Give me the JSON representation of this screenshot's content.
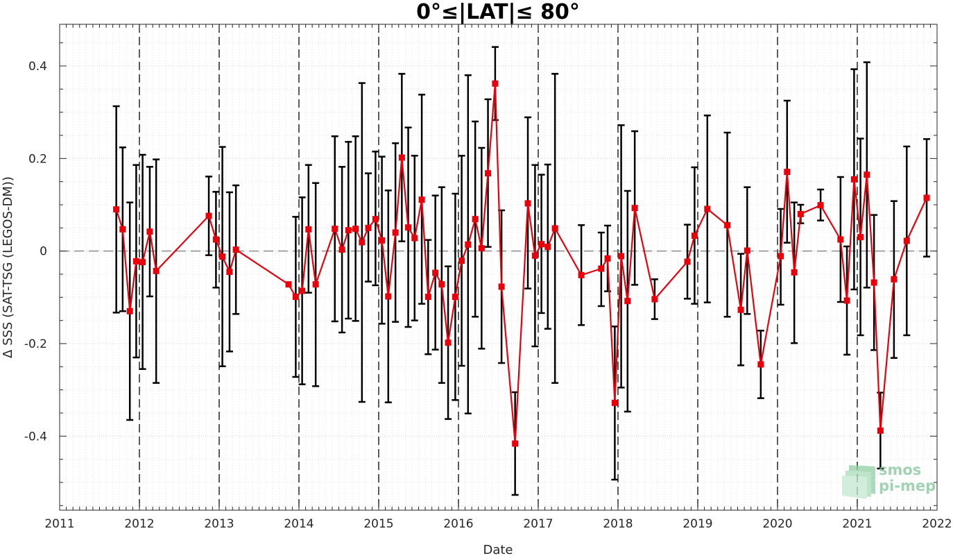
{
  "chart_data": {
    "type": "line",
    "title": "0°≤|LAT|≤ 80°",
    "xlabel": "Date",
    "ylabel": "Δ SSS (SAT-TSG (LEGOS-DM))",
    "xlim": [
      2011,
      2022
    ],
    "ylim": [
      -0.56,
      0.49
    ],
    "x_ticks": [
      "2011",
      "2012",
      "2013",
      "2014",
      "2015",
      "2016",
      "2017",
      "2018",
      "2019",
      "2020",
      "2021",
      "2022"
    ],
    "y_ticks": [
      "-0.4",
      "-0.2",
      "0",
      "0.2",
      "0.4"
    ],
    "y_tick_values": [
      -0.4,
      -0.2,
      0,
      0.2,
      0.4
    ],
    "grid": true,
    "reference_line": 0,
    "year_separators": [
      2012,
      2013,
      2014,
      2015,
      2016,
      2017,
      2018,
      2019,
      2020,
      2021
    ],
    "series": [
      {
        "color": "#e8000b",
        "marker": "square",
        "errorbar_color": "#000000",
        "points": [
          {
            "x": 2011.71,
            "y": 0.09,
            "lo": -0.133,
            "hi": 0.313
          },
          {
            "x": 2011.79,
            "y": 0.047,
            "lo": -0.13,
            "hi": 0.224
          },
          {
            "x": 2011.88,
            "y": -0.13,
            "lo": -0.365,
            "hi": 0.105
          },
          {
            "x": 2011.96,
            "y": -0.022,
            "lo": -0.23,
            "hi": 0.186
          },
          {
            "x": 2012.04,
            "y": -0.024,
            "lo": -0.255,
            "hi": 0.208
          },
          {
            "x": 2012.13,
            "y": 0.042,
            "lo": -0.098,
            "hi": 0.182
          },
          {
            "x": 2012.21,
            "y": -0.043,
            "lo": -0.285,
            "hi": 0.198
          },
          {
            "x": 2012.87,
            "y": 0.076,
            "lo": -0.009,
            "hi": 0.161
          },
          {
            "x": 2012.96,
            "y": 0.025,
            "lo": -0.079,
            "hi": 0.128
          },
          {
            "x": 2013.04,
            "y": -0.012,
            "lo": -0.249,
            "hi": 0.225
          },
          {
            "x": 2013.13,
            "y": -0.045,
            "lo": -0.217,
            "hi": 0.127
          },
          {
            "x": 2013.21,
            "y": 0.003,
            "lo": -0.136,
            "hi": 0.142
          },
          {
            "x": 2013.87,
            "y": -0.072,
            "lo": -0.072,
            "hi": -0.072
          },
          {
            "x": 2013.96,
            "y": -0.099,
            "lo": -0.272,
            "hi": 0.074
          },
          {
            "x": 2014.04,
            "y": -0.086,
            "lo": -0.288,
            "hi": 0.116
          },
          {
            "x": 2014.12,
            "y": 0.047,
            "lo": -0.09,
            "hi": 0.186
          },
          {
            "x": 2014.21,
            "y": -0.072,
            "lo": -0.292,
            "hi": 0.147
          },
          {
            "x": 2014.45,
            "y": 0.048,
            "lo": -0.152,
            "hi": 0.248
          },
          {
            "x": 2014.54,
            "y": 0.003,
            "lo": -0.176,
            "hi": 0.182
          },
          {
            "x": 2014.62,
            "y": 0.045,
            "lo": -0.146,
            "hi": 0.236
          },
          {
            "x": 2014.71,
            "y": 0.048,
            "lo": -0.151,
            "hi": 0.248
          },
          {
            "x": 2014.79,
            "y": 0.019,
            "lo": -0.326,
            "hi": 0.363
          },
          {
            "x": 2014.87,
            "y": 0.05,
            "lo": -0.066,
            "hi": 0.168
          },
          {
            "x": 2014.96,
            "y": 0.069,
            "lo": -0.074,
            "hi": 0.215
          },
          {
            "x": 2015.04,
            "y": 0.023,
            "lo": -0.157,
            "hi": 0.204
          },
          {
            "x": 2015.12,
            "y": -0.098,
            "lo": -0.327,
            "hi": 0.131
          },
          {
            "x": 2015.21,
            "y": 0.04,
            "lo": -0.153,
            "hi": 0.233
          },
          {
            "x": 2015.29,
            "y": 0.202,
            "lo": 0.021,
            "hi": 0.383
          },
          {
            "x": 2015.37,
            "y": 0.051,
            "lo": -0.164,
            "hi": 0.267
          },
          {
            "x": 2015.45,
            "y": 0.028,
            "lo": -0.15,
            "hi": 0.206
          },
          {
            "x": 2015.54,
            "y": 0.111,
            "lo": -0.114,
            "hi": 0.338
          },
          {
            "x": 2015.62,
            "y": -0.099,
            "lo": -0.223,
            "hi": 0.024
          },
          {
            "x": 2015.71,
            "y": -0.047,
            "lo": -0.213,
            "hi": 0.12
          },
          {
            "x": 2015.79,
            "y": -0.072,
            "lo": -0.285,
            "hi": 0.138
          },
          {
            "x": 2015.87,
            "y": -0.198,
            "lo": -0.363,
            "hi": -0.033
          },
          {
            "x": 2015.96,
            "y": -0.099,
            "lo": -0.322,
            "hi": 0.124
          },
          {
            "x": 2016.04,
            "y": -0.021,
            "lo": -0.248,
            "hi": 0.206
          },
          {
            "x": 2016.12,
            "y": 0.014,
            "lo": -0.351,
            "hi": 0.38
          },
          {
            "x": 2016.21,
            "y": 0.069,
            "lo": -0.142,
            "hi": 0.28
          },
          {
            "x": 2016.29,
            "y": 0.006,
            "lo": -0.211,
            "hi": 0.223
          },
          {
            "x": 2016.37,
            "y": 0.168,
            "lo": 0.009,
            "hi": 0.328
          },
          {
            "x": 2016.46,
            "y": 0.362,
            "lo": 0.283,
            "hi": 0.441
          },
          {
            "x": 2016.54,
            "y": -0.077,
            "lo": -0.242,
            "hi": 0.088
          },
          {
            "x": 2016.71,
            "y": -0.416,
            "lo": -0.527,
            "hi": -0.305
          },
          {
            "x": 2016.87,
            "y": 0.103,
            "lo": -0.081,
            "hi": 0.289
          },
          {
            "x": 2016.96,
            "y": -0.01,
            "lo": -0.206,
            "hi": 0.186
          },
          {
            "x": 2017.04,
            "y": 0.015,
            "lo": -0.134,
            "hi": 0.165
          },
          {
            "x": 2017.12,
            "y": 0.009,
            "lo": -0.168,
            "hi": 0.187
          },
          {
            "x": 2017.21,
            "y": 0.049,
            "lo": -0.285,
            "hi": 0.383
          },
          {
            "x": 2017.54,
            "y": -0.052,
            "lo": -0.16,
            "hi": 0.056
          },
          {
            "x": 2017.79,
            "y": -0.038,
            "lo": -0.119,
            "hi": 0.04
          },
          {
            "x": 2017.87,
            "y": -0.016,
            "lo": -0.087,
            "hi": 0.055
          },
          {
            "x": 2017.96,
            "y": -0.328,
            "lo": -0.494,
            "hi": -0.163
          },
          {
            "x": 2018.04,
            "y": -0.011,
            "lo": -0.295,
            "hi": 0.272
          },
          {
            "x": 2018.12,
            "y": -0.108,
            "lo": -0.347,
            "hi": 0.13
          },
          {
            "x": 2018.21,
            "y": 0.093,
            "lo": -0.073,
            "hi": 0.259
          },
          {
            "x": 2018.46,
            "y": -0.104,
            "lo": -0.147,
            "hi": -0.061
          },
          {
            "x": 2018.87,
            "y": -0.023,
            "lo": -0.103,
            "hi": 0.057
          },
          {
            "x": 2018.96,
            "y": 0.033,
            "lo": -0.114,
            "hi": 0.181
          },
          {
            "x": 2019.12,
            "y": 0.091,
            "lo": -0.111,
            "hi": 0.293
          },
          {
            "x": 2019.37,
            "y": 0.056,
            "lo": -0.142,
            "hi": 0.256
          },
          {
            "x": 2019.54,
            "y": -0.127,
            "lo": -0.247,
            "hi": -0.006
          },
          {
            "x": 2019.62,
            "y": 0.001,
            "lo": -0.136,
            "hi": 0.138
          },
          {
            "x": 2019.79,
            "y": -0.245,
            "lo": -0.318,
            "hi": -0.172
          },
          {
            "x": 2020.04,
            "y": -0.011,
            "lo": -0.116,
            "hi": 0.091
          },
          {
            "x": 2020.12,
            "y": 0.171,
            "lo": 0.018,
            "hi": 0.325
          },
          {
            "x": 2020.21,
            "y": -0.046,
            "lo": -0.199,
            "hi": 0.105
          },
          {
            "x": 2020.29,
            "y": 0.08,
            "lo": 0.06,
            "hi": 0.1
          },
          {
            "x": 2020.54,
            "y": 0.099,
            "lo": 0.066,
            "hi": 0.133
          },
          {
            "x": 2020.79,
            "y": 0.025,
            "lo": -0.11,
            "hi": 0.16
          },
          {
            "x": 2020.87,
            "y": -0.107,
            "lo": -0.224,
            "hi": 0.01
          },
          {
            "x": 2020.96,
            "y": 0.155,
            "lo": -0.083,
            "hi": 0.393
          },
          {
            "x": 2021.04,
            "y": 0.03,
            "lo": -0.182,
            "hi": 0.243
          },
          {
            "x": 2021.12,
            "y": 0.165,
            "lo": -0.079,
            "hi": 0.408
          },
          {
            "x": 2021.21,
            "y": -0.068,
            "lo": -0.214,
            "hi": 0.078
          },
          {
            "x": 2021.29,
            "y": -0.388,
            "lo": -0.47,
            "hi": -0.306
          },
          {
            "x": 2021.46,
            "y": -0.061,
            "lo": -0.231,
            "hi": 0.108
          },
          {
            "x": 2021.62,
            "y": 0.022,
            "lo": -0.182,
            "hi": 0.226
          },
          {
            "x": 2021.87,
            "y": 0.115,
            "lo": -0.012,
            "hi": 0.242
          }
        ]
      }
    ]
  },
  "logo": {
    "line1": "smos",
    "line2": "pi-mep"
  }
}
